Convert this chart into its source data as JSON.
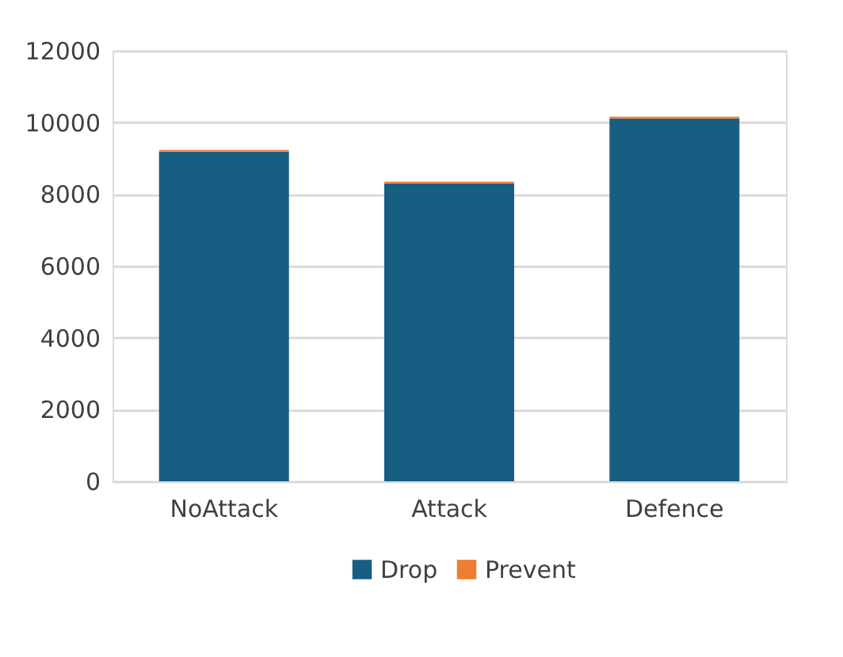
{
  "chart_data": {
    "type": "bar",
    "stacked": true,
    "categories": [
      "NoAttack",
      "Attack",
      "Defence"
    ],
    "series": [
      {
        "name": "Drop",
        "color": "#175e83",
        "values": [
          9180,
          8300,
          10110
        ]
      },
      {
        "name": "Prevent",
        "color": "#ed7d31",
        "values": [
          50,
          50,
          50
        ]
      }
    ],
    "ylim": [
      0,
      12000
    ],
    "yticks": [
      0,
      2000,
      4000,
      6000,
      8000,
      10000,
      12000
    ],
    "grid": "y",
    "legend": "bottom"
  }
}
